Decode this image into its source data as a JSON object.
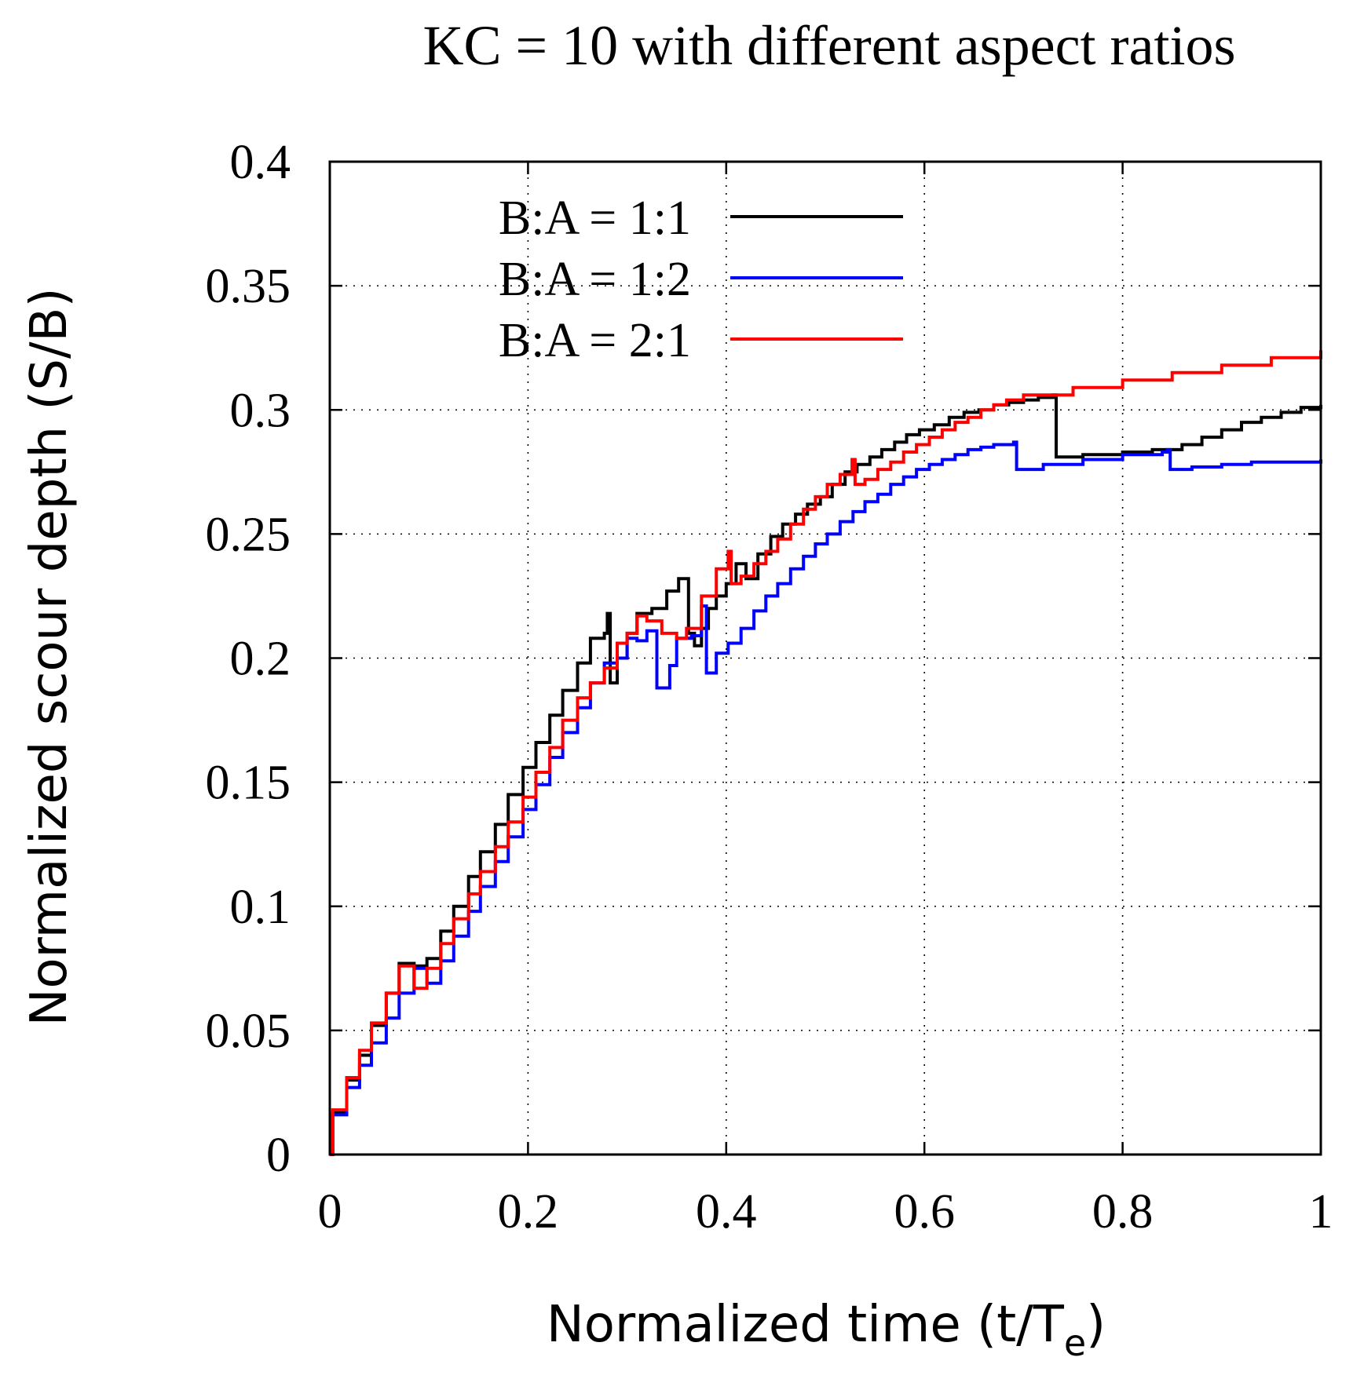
{
  "chart_data": {
    "type": "line",
    "title": "KC = 10 with different aspect ratios",
    "xlabel": "Normalized time (t/T",
    "xlabel_sub": "e",
    "xlabel_close": ")",
    "ylabel": "Normalized scour depth (S/B)",
    "xlim": [
      0,
      1
    ],
    "ylim": [
      0,
      0.4
    ],
    "x_ticks": [
      0,
      0.2,
      0.4,
      0.6,
      0.8,
      1
    ],
    "x_tick_labels": [
      "0",
      "0.2",
      "0.4",
      "0.6",
      "0.8",
      "1"
    ],
    "y_ticks": [
      0,
      0.05,
      0.1,
      0.15,
      0.2,
      0.25,
      0.3,
      0.35,
      0.4
    ],
    "y_tick_labels": [
      "0",
      "0.05",
      "0.1",
      "0.15",
      "0.2",
      "0.25",
      "0.3",
      "0.35",
      "0.4"
    ],
    "grid": true,
    "legend_position": "top-left",
    "series": [
      {
        "name": "B:A = 1:1",
        "color": "#000000",
        "x": [
          0,
          0.003,
          0.017,
          0.03,
          0.042,
          0.057,
          0.07,
          0.085,
          0.098,
          0.112,
          0.125,
          0.14,
          0.152,
          0.167,
          0.18,
          0.195,
          0.208,
          0.222,
          0.235,
          0.25,
          0.263,
          0.277,
          0.28,
          0.283,
          0.29,
          0.3,
          0.31,
          0.325,
          0.34,
          0.352,
          0.362,
          0.368,
          0.375,
          0.382,
          0.39,
          0.4,
          0.41,
          0.42,
          0.432,
          0.445,
          0.457,
          0.47,
          0.482,
          0.495,
          0.507,
          0.52,
          0.532,
          0.545,
          0.557,
          0.57,
          0.582,
          0.595,
          0.61,
          0.625,
          0.64,
          0.655,
          0.67,
          0.685,
          0.7,
          0.715,
          0.73,
          0.733,
          0.76,
          0.8,
          0.83,
          0.86,
          0.88,
          0.9,
          0.92,
          0.94,
          0.96,
          0.98,
          1.0
        ],
        "y": [
          0,
          0.017,
          0.03,
          0.04,
          0.052,
          0.065,
          0.077,
          0.076,
          0.079,
          0.09,
          0.1,
          0.112,
          0.122,
          0.133,
          0.145,
          0.156,
          0.166,
          0.177,
          0.187,
          0.198,
          0.208,
          0.21,
          0.218,
          0.19,
          0.2,
          0.21,
          0.218,
          0.22,
          0.227,
          0.232,
          0.21,
          0.205,
          0.212,
          0.22,
          0.225,
          0.23,
          0.238,
          0.232,
          0.242,
          0.249,
          0.254,
          0.258,
          0.262,
          0.265,
          0.27,
          0.275,
          0.278,
          0.281,
          0.284,
          0.287,
          0.29,
          0.292,
          0.294,
          0.297,
          0.299,
          0.3,
          0.302,
          0.303,
          0.304,
          0.305,
          0.306,
          0.281,
          0.282,
          0.283,
          0.284,
          0.286,
          0.289,
          0.292,
          0.295,
          0.297,
          0.299,
          0.301,
          0.302
        ]
      },
      {
        "name": "B:A = 1:2",
        "color": "#0000ff",
        "x": [
          0,
          0.003,
          0.017,
          0.03,
          0.042,
          0.057,
          0.07,
          0.085,
          0.098,
          0.112,
          0.125,
          0.14,
          0.152,
          0.167,
          0.18,
          0.195,
          0.208,
          0.222,
          0.235,
          0.25,
          0.263,
          0.277,
          0.29,
          0.3,
          0.31,
          0.32,
          0.33,
          0.343,
          0.35,
          0.365,
          0.375,
          0.38,
          0.39,
          0.402,
          0.415,
          0.428,
          0.44,
          0.452,
          0.465,
          0.478,
          0.49,
          0.502,
          0.515,
          0.528,
          0.54,
          0.553,
          0.566,
          0.579,
          0.592,
          0.605,
          0.618,
          0.631,
          0.644,
          0.657,
          0.67,
          0.683,
          0.69,
          0.693,
          0.72,
          0.76,
          0.8,
          0.84,
          0.845,
          0.848,
          0.87,
          0.9,
          0.93,
          0.96,
          1.0
        ],
        "y": [
          0,
          0.016,
          0.027,
          0.036,
          0.045,
          0.055,
          0.065,
          0.075,
          0.069,
          0.078,
          0.088,
          0.098,
          0.108,
          0.118,
          0.128,
          0.139,
          0.149,
          0.16,
          0.17,
          0.18,
          0.19,
          0.198,
          0.2,
          0.208,
          0.207,
          0.211,
          0.188,
          0.197,
          0.208,
          0.209,
          0.221,
          0.194,
          0.202,
          0.206,
          0.212,
          0.219,
          0.225,
          0.23,
          0.236,
          0.241,
          0.246,
          0.25,
          0.255,
          0.259,
          0.263,
          0.266,
          0.27,
          0.273,
          0.276,
          0.278,
          0.28,
          0.282,
          0.284,
          0.285,
          0.286,
          0.286,
          0.287,
          0.276,
          0.278,
          0.28,
          0.282,
          0.283,
          0.284,
          0.276,
          0.277,
          0.278,
          0.279,
          0.279,
          0.28
        ]
      },
      {
        "name": "B:A = 2:1",
        "color": "#ff0000",
        "x": [
          0,
          0.003,
          0.017,
          0.03,
          0.042,
          0.057,
          0.07,
          0.078,
          0.085,
          0.098,
          0.112,
          0.125,
          0.14,
          0.152,
          0.167,
          0.18,
          0.195,
          0.208,
          0.222,
          0.235,
          0.25,
          0.263,
          0.277,
          0.29,
          0.3,
          0.31,
          0.32,
          0.335,
          0.35,
          0.36,
          0.375,
          0.39,
          0.402,
          0.405,
          0.415,
          0.428,
          0.44,
          0.452,
          0.465,
          0.478,
          0.49,
          0.502,
          0.515,
          0.527,
          0.53,
          0.54,
          0.553,
          0.566,
          0.579,
          0.592,
          0.605,
          0.618,
          0.631,
          0.644,
          0.657,
          0.67,
          0.683,
          0.7,
          0.75,
          0.8,
          0.85,
          0.9,
          0.95,
          1.0
        ],
        "y": [
          0,
          0.018,
          0.031,
          0.042,
          0.053,
          0.065,
          0.076,
          0.076,
          0.067,
          0.075,
          0.085,
          0.095,
          0.105,
          0.114,
          0.124,
          0.134,
          0.144,
          0.154,
          0.164,
          0.175,
          0.184,
          0.19,
          0.196,
          0.206,
          0.21,
          0.217,
          0.215,
          0.21,
          0.208,
          0.212,
          0.225,
          0.236,
          0.243,
          0.23,
          0.233,
          0.238,
          0.243,
          0.248,
          0.254,
          0.26,
          0.265,
          0.27,
          0.274,
          0.28,
          0.27,
          0.272,
          0.276,
          0.279,
          0.283,
          0.286,
          0.289,
          0.292,
          0.295,
          0.297,
          0.3,
          0.302,
          0.304,
          0.306,
          0.309,
          0.312,
          0.315,
          0.318,
          0.321,
          0.324
        ]
      }
    ]
  }
}
